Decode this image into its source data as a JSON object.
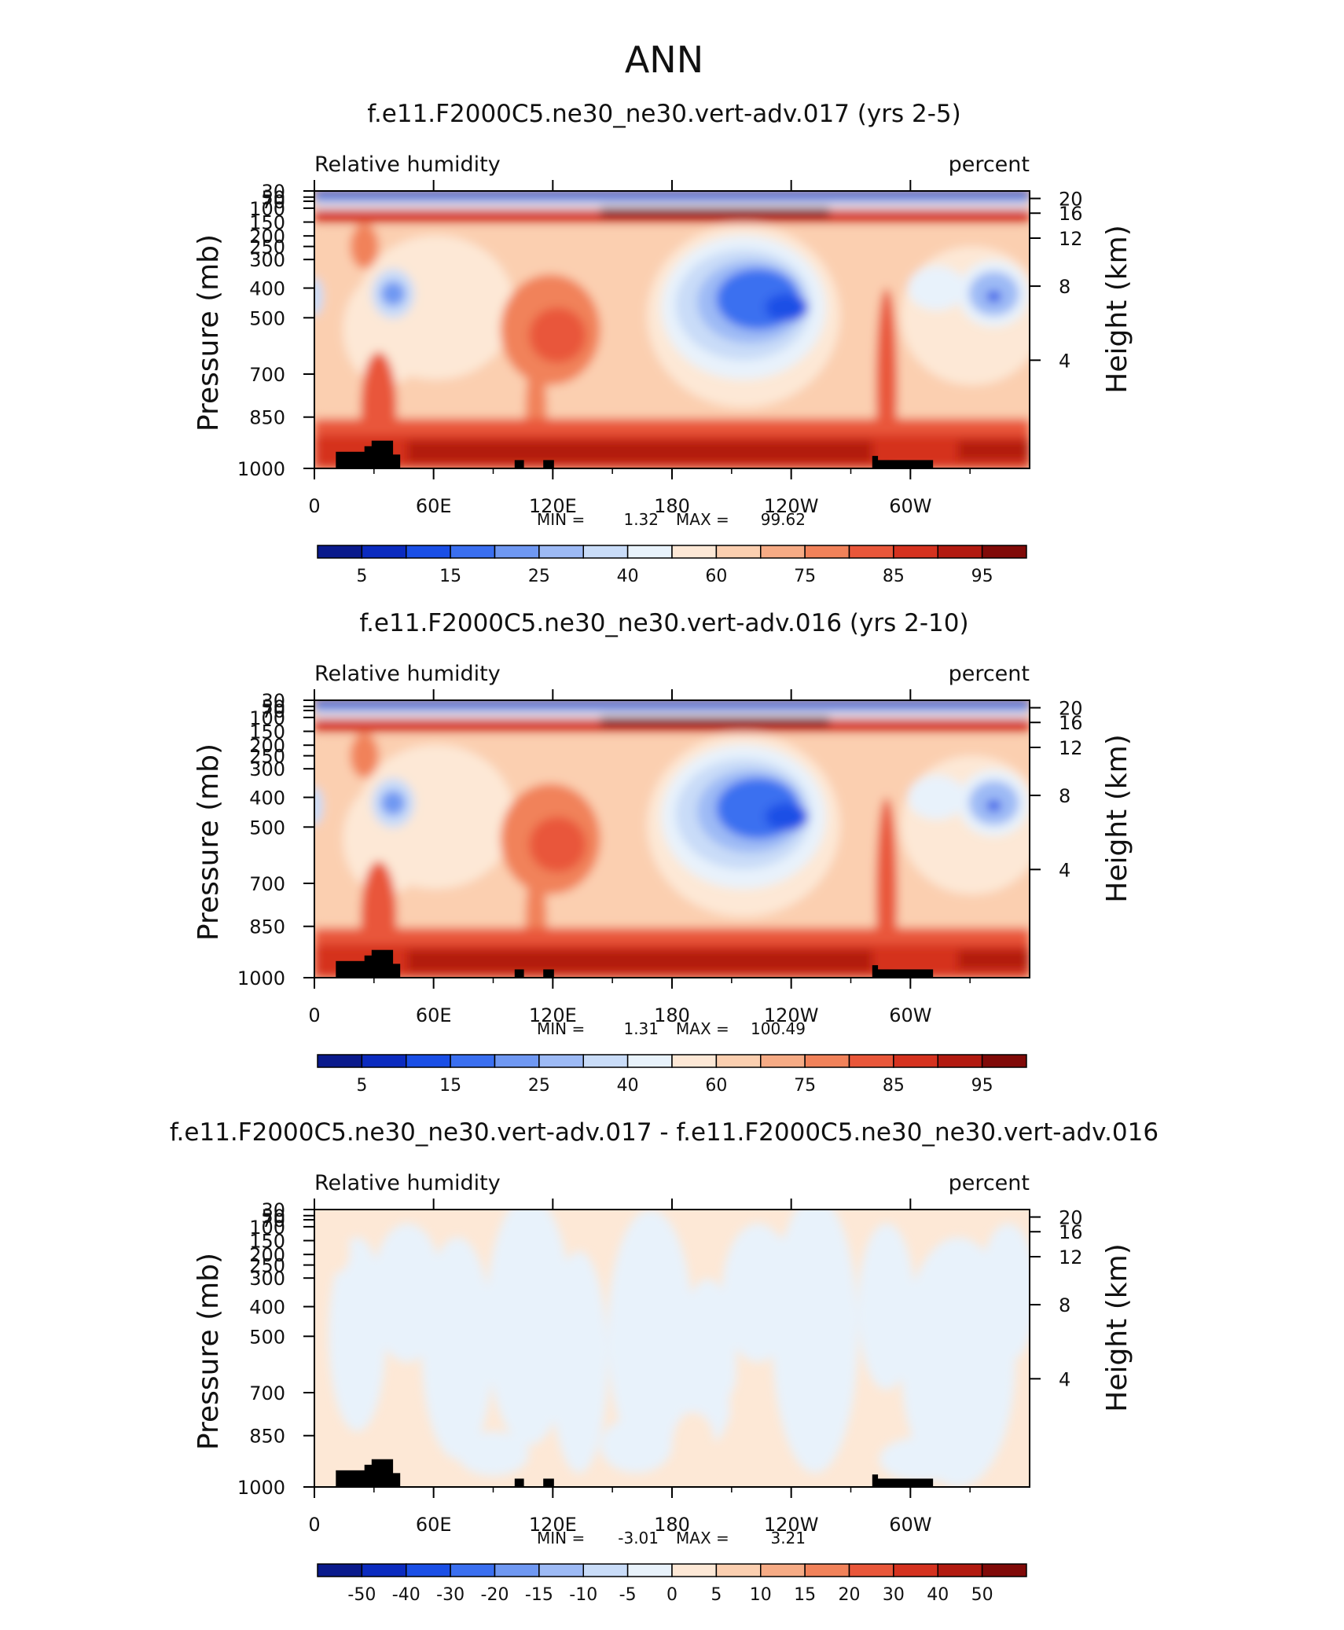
{
  "page": {
    "title": "ANN"
  },
  "common": {
    "left_label": "Relative humidity",
    "right_label": "percent",
    "y_left_title": "Pressure (mb)",
    "y_right_title": "Height (km)",
    "min_label": "MIN =",
    "max_label": "MAX ="
  },
  "chart_data": [
    {
      "type": "heatmap",
      "title": "f.e11.F2000C5.ne30_ne30.vert-adv.017 (yrs 2-5)",
      "xlabel": "",
      "ylabel": "Pressure (mb)",
      "y2label": "Height (km)",
      "x_ticks": [
        "0",
        "60E",
        "120E",
        "180",
        "120W",
        "60W"
      ],
      "y_ticks": [
        "30",
        "50",
        "70",
        "100",
        "150",
        "200",
        "250",
        "300",
        "400",
        "500",
        "700",
        "850",
        "1000"
      ],
      "y2_ticks": [
        "20",
        "16",
        "12",
        "8",
        "4"
      ],
      "min": "1.32",
      "max": "99.62",
      "colorbar": {
        "labels": [
          "5",
          "15",
          "25",
          "40",
          "60",
          "75",
          "85",
          "95"
        ],
        "colors": [
          "#0a1a8c",
          "#0b2bbf",
          "#1a4fe6",
          "#3a6ff0",
          "#6f98f2",
          "#9dbaf5",
          "#c9dcf8",
          "#e8f2fb",
          "#fde8d6",
          "#fbcfb0",
          "#f6ab85",
          "#f1825a",
          "#e9573a",
          "#d5321f",
          "#b21a10",
          "#800a08"
        ]
      }
    },
    {
      "type": "heatmap",
      "title": "f.e11.F2000C5.ne30_ne30.vert-adv.016 (yrs 2-10)",
      "xlabel": "",
      "ylabel": "Pressure (mb)",
      "y2label": "Height (km)",
      "x_ticks": [
        "0",
        "60E",
        "120E",
        "180",
        "120W",
        "60W"
      ],
      "y_ticks": [
        "30",
        "50",
        "70",
        "100",
        "150",
        "200",
        "250",
        "300",
        "400",
        "500",
        "700",
        "850",
        "1000"
      ],
      "y2_ticks": [
        "20",
        "16",
        "12",
        "8",
        "4"
      ],
      "min": "1.31",
      "max": "100.49",
      "colorbar": {
        "labels": [
          "5",
          "15",
          "25",
          "40",
          "60",
          "75",
          "85",
          "95"
        ],
        "colors": [
          "#0a1a8c",
          "#0b2bbf",
          "#1a4fe6",
          "#3a6ff0",
          "#6f98f2",
          "#9dbaf5",
          "#c9dcf8",
          "#e8f2fb",
          "#fde8d6",
          "#fbcfb0",
          "#f6ab85",
          "#f1825a",
          "#e9573a",
          "#d5321f",
          "#b21a10",
          "#800a08"
        ]
      }
    },
    {
      "type": "heatmap",
      "title": "f.e11.F2000C5.ne30_ne30.vert-adv.017 - f.e11.F2000C5.ne30_ne30.vert-adv.016",
      "xlabel": "",
      "ylabel": "Pressure (mb)",
      "y2label": "Height (km)",
      "x_ticks": [
        "0",
        "60E",
        "120E",
        "180",
        "120W",
        "60W"
      ],
      "y_ticks": [
        "30",
        "50",
        "70",
        "100",
        "150",
        "200",
        "250",
        "300",
        "400",
        "500",
        "700",
        "850",
        "1000"
      ],
      "y2_ticks": [
        "20",
        "16",
        "12",
        "8",
        "4"
      ],
      "min": "-3.01",
      "max": "3.21",
      "colorbar": {
        "labels": [
          "-50",
          "-40",
          "-30",
          "-20",
          "-15",
          "-10",
          "-5",
          "0",
          "5",
          "10",
          "15",
          "20",
          "30",
          "40",
          "50"
        ],
        "colors": [
          "#0a1a8c",
          "#0b2bbf",
          "#1a4fe6",
          "#3a6ff0",
          "#6f98f2",
          "#9dbaf5",
          "#c9dcf8",
          "#e8f2fb",
          "#fde8d6",
          "#fbcfb0",
          "#f6ab85",
          "#f1825a",
          "#e9573a",
          "#d5321f",
          "#b21a10",
          "#800a08"
        ]
      }
    }
  ]
}
